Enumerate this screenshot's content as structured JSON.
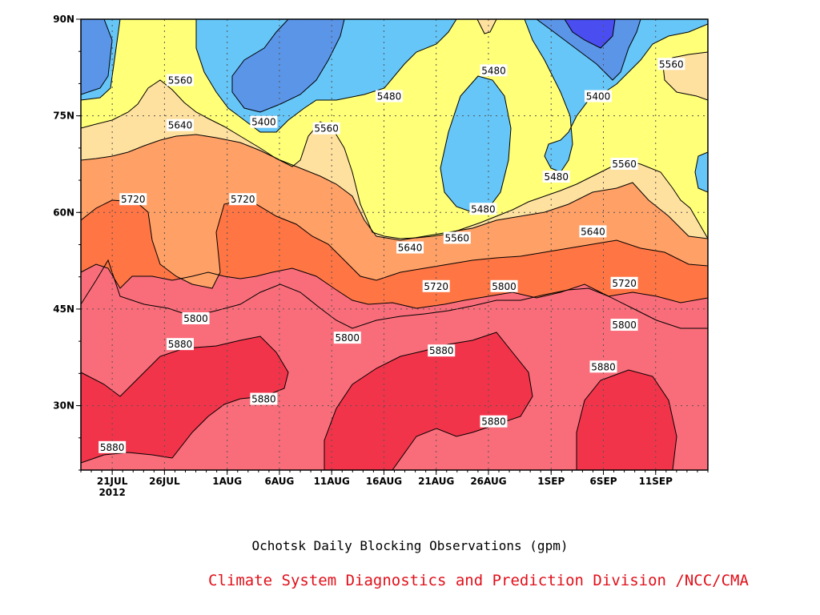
{
  "chart_data": {
    "type": "contour",
    "title": "Ochotsk Daily Blocking Observations (gpm)",
    "credit": "Climate System Diagnostics and Prediction Division /NCC/CMA",
    "x_ticks": [
      "21JUL",
      "26JUL",
      "1AUG",
      "6AUG",
      "11AUG",
      "16AUG",
      "21AUG",
      "26AUG",
      "1SEP",
      "6SEP",
      "11SEP"
    ],
    "x_tick_days": [
      4,
      9,
      15,
      20,
      25,
      30,
      35,
      40,
      46,
      51,
      56
    ],
    "year_label": "2012",
    "x_range_days": [
      1,
      61
    ],
    "y_ticks": [
      "30N",
      "45N",
      "60N",
      "75N",
      "90N"
    ],
    "y_tick_values": [
      30,
      45,
      60,
      75,
      90
    ],
    "y_range": [
      20,
      90
    ],
    "levels": [
      5400,
      5480,
      5560,
      5640,
      5720,
      5800,
      5880
    ],
    "colors": {
      "lt5400": "#4a4ef0",
      "5400_5480": "#5b95e8",
      "5480_5560": "#66c6f8",
      "5560_5640": "#ffff78",
      "5640_5720": "#ffe19f",
      "5720_5800": "#ffa066",
      "5800_5880": "#ff7544",
      "5880_5960": "#f96d7a",
      "gt5960": "#f2344a"
    },
    "contour_labels": [
      {
        "value": "5560",
        "day": 10.5,
        "lat": 80.5
      },
      {
        "value": "5640",
        "day": 10.5,
        "lat": 73.5
      },
      {
        "value": "5400",
        "day": 18.5,
        "lat": 74
      },
      {
        "value": "5560",
        "day": 24.5,
        "lat": 73
      },
      {
        "value": "5480",
        "day": 30.5,
        "lat": 78
      },
      {
        "value": "5480",
        "day": 40.5,
        "lat": 82
      },
      {
        "value": "5400",
        "day": 50.5,
        "lat": 78
      },
      {
        "value": "5560",
        "day": 57.5,
        "lat": 83
      },
      {
        "value": "5480",
        "day": 46.5,
        "lat": 65.5
      },
      {
        "value": "5560",
        "day": 53,
        "lat": 67.5
      },
      {
        "value": "5720",
        "day": 6,
        "lat": 62
      },
      {
        "value": "5720",
        "day": 16.5,
        "lat": 62
      },
      {
        "value": "5480",
        "day": 39.5,
        "lat": 60.5
      },
      {
        "value": "5640",
        "day": 32.5,
        "lat": 54.5
      },
      {
        "value": "5560",
        "day": 37,
        "lat": 56
      },
      {
        "value": "5640",
        "day": 50,
        "lat": 57
      },
      {
        "value": "5720",
        "day": 35,
        "lat": 48.5
      },
      {
        "value": "5800",
        "day": 41.5,
        "lat": 48.5
      },
      {
        "value": "5720",
        "day": 53,
        "lat": 49
      },
      {
        "value": "5800",
        "day": 12,
        "lat": 43.5
      },
      {
        "value": "5800",
        "day": 26.5,
        "lat": 40.5
      },
      {
        "value": "5800",
        "day": 53,
        "lat": 42.5
      },
      {
        "value": "5880",
        "day": 10.5,
        "lat": 39.5
      },
      {
        "value": "5880",
        "day": 35.5,
        "lat": 38.5
      },
      {
        "value": "5880",
        "day": 51,
        "lat": 36
      },
      {
        "value": "5880",
        "day": 18.5,
        "lat": 31
      },
      {
        "value": "5880",
        "day": 40.5,
        "lat": 27.5
      },
      {
        "value": "5880",
        "day": 4,
        "lat": 23.5
      }
    ]
  }
}
